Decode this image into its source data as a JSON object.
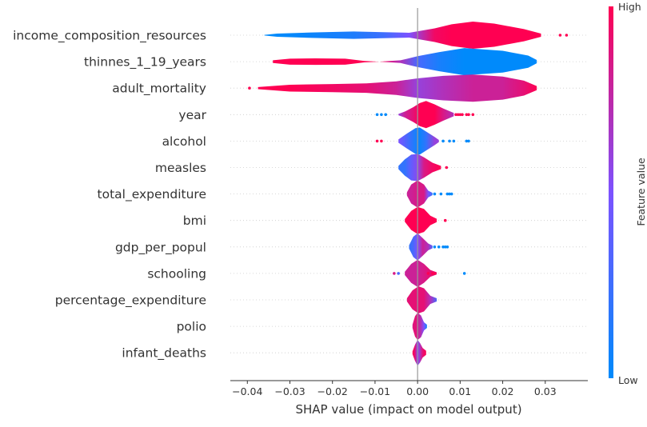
{
  "chart_data": {
    "type": "violin",
    "xlabel": "SHAP value (impact on model output)",
    "xlim": [
      -0.044,
      0.04
    ],
    "xticks": [
      -0.04,
      -0.03,
      -0.02,
      -0.01,
      0.0,
      0.01,
      0.02,
      0.03
    ],
    "xtick_labels": [
      "−0.04",
      "−0.03",
      "−0.02",
      "−0.01",
      "0.00",
      "0.01",
      "0.02",
      "0.03"
    ],
    "features": [
      {
        "name": "income_composition_resources",
        "profile": [
          [
            -0.036,
            0.02,
            0.0
          ],
          [
            -0.033,
            0.12,
            0.0
          ],
          [
            -0.025,
            0.2,
            0.05
          ],
          [
            -0.015,
            0.27,
            0.12
          ],
          [
            -0.008,
            0.22,
            0.25
          ],
          [
            -0.002,
            0.18,
            0.5
          ],
          [
            0.004,
            0.5,
            0.95
          ],
          [
            0.008,
            0.8,
            1.0
          ],
          [
            0.013,
            1.0,
            1.0
          ],
          [
            0.018,
            0.85,
            1.0
          ],
          [
            0.025,
            0.45,
            1.0
          ],
          [
            0.029,
            0.12,
            1.0
          ]
        ],
        "outliers": [
          [
            0.0335,
            1.0
          ],
          [
            0.035,
            1.0
          ]
        ]
      },
      {
        "name": "thinnes_1_19_years",
        "profile": [
          [
            -0.034,
            0.1,
            1.0
          ],
          [
            -0.03,
            0.22,
            1.0
          ],
          [
            -0.024,
            0.24,
            1.0
          ],
          [
            -0.017,
            0.22,
            1.0
          ],
          [
            -0.0125,
            0.05,
            1.0
          ],
          [
            -0.009,
            0.0,
            1.0
          ],
          [
            -0.004,
            0.1,
            0.7
          ],
          [
            0.0,
            0.4,
            0.3
          ],
          [
            0.005,
            0.7,
            0.1
          ],
          [
            0.011,
            1.0,
            0.0
          ],
          [
            0.02,
            0.8,
            0.0
          ],
          [
            0.026,
            0.45,
            0.0
          ],
          [
            0.028,
            0.12,
            0.0
          ]
        ],
        "outliers": []
      },
      {
        "name": "adult_mortality",
        "profile": [
          [
            -0.0375,
            0.08,
            1.0
          ],
          [
            -0.03,
            0.25,
            1.0
          ],
          [
            -0.02,
            0.3,
            0.95
          ],
          [
            -0.012,
            0.35,
            0.9
          ],
          [
            -0.005,
            0.5,
            0.8
          ],
          [
            0.0,
            0.72,
            0.6
          ],
          [
            0.006,
            0.9,
            0.7
          ],
          [
            0.013,
            1.0,
            0.8
          ],
          [
            0.02,
            0.85,
            0.8
          ],
          [
            0.025,
            0.55,
            0.9
          ],
          [
            0.028,
            0.15,
            1.0
          ]
        ],
        "outliers": [
          [
            -0.0395,
            1.0
          ]
        ]
      },
      {
        "name": "year",
        "profile": [
          [
            -0.0045,
            0.05,
            0.6
          ],
          [
            -0.003,
            0.22,
            0.8
          ],
          [
            -0.001,
            0.55,
            0.9
          ],
          [
            0.0005,
            0.85,
            1.0
          ],
          [
            0.002,
            1.0,
            1.0
          ],
          [
            0.004,
            0.75,
            1.0
          ],
          [
            0.006,
            0.45,
            0.85
          ],
          [
            0.0085,
            0.12,
            0.7
          ]
        ],
        "outliers": [
          [
            -0.0095,
            0.0
          ],
          [
            -0.0085,
            0.0
          ],
          [
            -0.0075,
            0.0
          ],
          [
            0.009,
            1.0
          ],
          [
            0.0095,
            1.0
          ],
          [
            0.01,
            1.0
          ],
          [
            0.0105,
            1.0
          ],
          [
            0.0115,
            1.0
          ],
          [
            0.012,
            1.0
          ],
          [
            0.013,
            1.0
          ]
        ]
      },
      {
        "name": "alcohol",
        "profile": [
          [
            -0.0045,
            0.12,
            0.5
          ],
          [
            -0.0025,
            0.55,
            0.3
          ],
          [
            -0.0005,
            0.95,
            0.1
          ],
          [
            0.0005,
            1.0,
            0.05
          ],
          [
            0.002,
            0.7,
            0.2
          ],
          [
            0.004,
            0.3,
            0.6
          ],
          [
            0.005,
            0.08,
            0.6
          ]
        ],
        "outliers": [
          [
            -0.0095,
            1.0
          ],
          [
            -0.0085,
            1.0
          ],
          [
            0.006,
            0.0
          ],
          [
            0.0075,
            0.0
          ],
          [
            0.0085,
            0.0
          ],
          [
            0.0115,
            0.0
          ],
          [
            0.012,
            0.0
          ]
        ]
      },
      {
        "name": "measles",
        "profile": [
          [
            -0.0045,
            0.12,
            0.2
          ],
          [
            -0.003,
            0.6,
            0.2
          ],
          [
            -0.0015,
            0.95,
            0.4
          ],
          [
            0.0,
            1.0,
            0.55
          ],
          [
            0.0015,
            0.75,
            0.85
          ],
          [
            0.0035,
            0.35,
            0.95
          ],
          [
            0.0055,
            0.12,
            1.0
          ]
        ],
        "outliers": [
          [
            0.0068,
            1.0
          ]
        ]
      },
      {
        "name": "total_expenditure",
        "profile": [
          [
            -0.0025,
            0.12,
            0.8
          ],
          [
            -0.0015,
            0.7,
            0.8
          ],
          [
            0.0,
            1.0,
            0.85
          ],
          [
            0.0015,
            0.7,
            0.85
          ],
          [
            0.0025,
            0.25,
            0.5
          ],
          [
            0.0035,
            0.08,
            0.2
          ]
        ],
        "outliers": [
          [
            0.004,
            0.0
          ],
          [
            0.0055,
            0.0
          ],
          [
            0.007,
            0.0
          ],
          [
            0.0075,
            0.0
          ],
          [
            0.008,
            0.0
          ]
        ]
      },
      {
        "name": "bmi",
        "profile": [
          [
            -0.003,
            0.1,
            1.0
          ],
          [
            -0.0015,
            0.7,
            1.0
          ],
          [
            0.0,
            1.0,
            1.0
          ],
          [
            0.0015,
            0.85,
            1.0
          ],
          [
            0.003,
            0.35,
            1.0
          ],
          [
            0.0045,
            0.12,
            1.0
          ]
        ],
        "outliers": [
          [
            0.0065,
            1.0
          ]
        ]
      },
      {
        "name": "gdp_per_popul",
        "profile": [
          [
            -0.002,
            0.12,
            0.2
          ],
          [
            -0.001,
            0.75,
            0.3
          ],
          [
            0.0,
            1.0,
            0.5
          ],
          [
            0.0012,
            0.65,
            0.8
          ],
          [
            0.0025,
            0.25,
            0.7
          ],
          [
            0.0035,
            0.1,
            0.3
          ]
        ],
        "outliers": [
          [
            0.004,
            0.0
          ],
          [
            0.005,
            0.0
          ],
          [
            0.006,
            0.0
          ],
          [
            0.0065,
            0.0
          ],
          [
            0.007,
            0.0
          ]
        ]
      },
      {
        "name": "schooling",
        "profile": [
          [
            -0.003,
            0.12,
            0.8
          ],
          [
            -0.0015,
            0.7,
            0.8
          ],
          [
            0.0,
            1.0,
            0.8
          ],
          [
            0.0015,
            0.7,
            0.85
          ],
          [
            0.003,
            0.25,
            0.9
          ],
          [
            0.0045,
            0.08,
            0.9
          ]
        ],
        "outliers": [
          [
            -0.0055,
            0.85
          ],
          [
            -0.0045,
            0.3
          ],
          [
            0.0025,
            1.0
          ],
          [
            0.0035,
            1.0
          ],
          [
            0.004,
            1.0
          ],
          [
            0.011,
            0.0
          ]
        ]
      },
      {
        "name": "percentage_expenditure",
        "profile": [
          [
            -0.0025,
            0.12,
            0.9
          ],
          [
            -0.0012,
            0.7,
            0.9
          ],
          [
            0.0002,
            1.0,
            0.9
          ],
          [
            0.0015,
            0.85,
            0.9
          ],
          [
            0.003,
            0.3,
            0.7
          ],
          [
            0.0045,
            0.12,
            0.3
          ]
        ],
        "outliers": []
      },
      {
        "name": "polio",
        "profile": [
          [
            -0.0012,
            0.12,
            0.85
          ],
          [
            -0.0006,
            0.75,
            0.9
          ],
          [
            0.0,
            1.0,
            0.85
          ],
          [
            0.0008,
            0.8,
            0.7
          ],
          [
            0.0015,
            0.3,
            0.5
          ],
          [
            0.0022,
            0.12,
            0.05
          ]
        ],
        "outliers": []
      },
      {
        "name": "infant_deaths",
        "profile": [
          [
            -0.0012,
            0.1,
            1.0
          ],
          [
            -0.0006,
            0.6,
            0.9
          ],
          [
            0.0,
            0.95,
            0.5
          ],
          [
            0.0006,
            0.7,
            0.7
          ],
          [
            0.0012,
            0.35,
            0.9
          ],
          [
            0.002,
            0.15,
            1.0
          ]
        ],
        "outliers": []
      }
    ],
    "colorbar": {
      "title": "Feature value",
      "high_label": "High",
      "low_label": "Low",
      "low_color": "#008afb",
      "mid_color": "#7c52ff",
      "high_color": "#ff0052"
    }
  }
}
